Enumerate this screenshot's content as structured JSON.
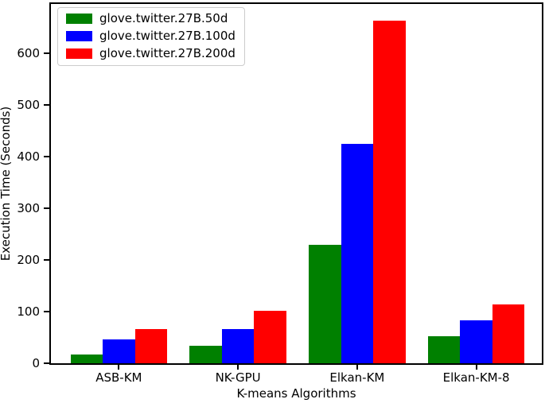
{
  "chart_data": {
    "type": "bar",
    "title": "",
    "xlabel": "K-means Algorithms",
    "ylabel": "Execution Time (Seconds)",
    "categories": [
      "ASB-KM",
      "NK-GPU",
      "Elkan-KM",
      "Elkan-KM-8"
    ],
    "series": [
      {
        "name": "glove.twitter.27B.50d",
        "color": "#008000",
        "values": [
          17,
          34,
          230,
          53
        ]
      },
      {
        "name": "glove.twitter.27B.100d",
        "color": "#0000ff",
        "values": [
          46,
          66,
          425,
          83
        ]
      },
      {
        "name": "glove.twitter.27B.200d",
        "color": "#ff0000",
        "values": [
          66,
          102,
          663,
          114
        ]
      }
    ],
    "yticks": [
      0,
      100,
      200,
      300,
      400,
      500,
      600
    ],
    "ylim": [
      0,
      696
    ],
    "xlim": [
      -0.57,
      3.55
    ],
    "bar_width": 0.27,
    "legend_position": "upper left",
    "grid": false,
    "colors": {
      "spine": "#000000",
      "background": "#ffffff",
      "legend_border": "#cccccc"
    }
  }
}
